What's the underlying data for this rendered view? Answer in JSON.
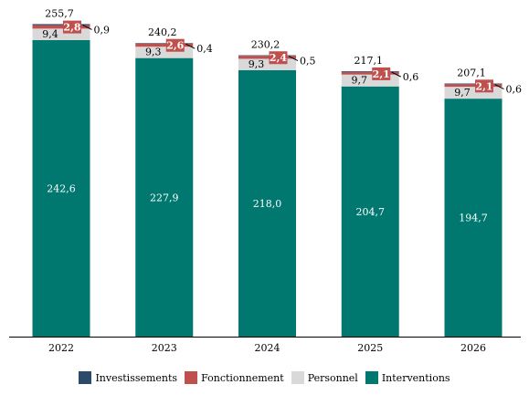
{
  "chart_data": {
    "type": "bar",
    "stacked": true,
    "categories": [
      "2022",
      "2023",
      "2024",
      "2025",
      "2026"
    ],
    "totals": [
      "255,7",
      "240,2",
      "230,2",
      "217,1",
      "207,1"
    ],
    "series": [
      {
        "name": "Interventions",
        "color": "#00786f",
        "values": [
          242.6,
          227.9,
          218.0,
          204.7,
          194.7
        ],
        "labels": [
          "242,6",
          "227,9",
          "218,0",
          "204,7",
          "194,7"
        ]
      },
      {
        "name": "Personnel",
        "color": "#d9d9d9",
        "values": [
          9.4,
          9.3,
          9.3,
          9.7,
          9.7
        ],
        "labels": [
          "9,4",
          "9,3",
          "9,3",
          "9,7",
          "9,7"
        ]
      },
      {
        "name": "Fonctionnement",
        "color": "#c0504d",
        "values": [
          2.8,
          2.6,
          2.4,
          2.1,
          2.1
        ],
        "labels": [
          "2,8",
          "2,6",
          "2,4",
          "2,1",
          "2,1"
        ]
      },
      {
        "name": "Investissements",
        "color": "#2e4a6b",
        "values": [
          0.9,
          0.4,
          0.5,
          0.6,
          0.6
        ],
        "labels": [
          "0,9",
          "0,4",
          "0,5",
          "0,6",
          "0,6"
        ]
      }
    ],
    "ylim": [
      0,
      256
    ],
    "grid": false,
    "legend": {
      "position": "bottom",
      "order": [
        "Investissements",
        "Fonctionnement",
        "Personnel",
        "Interventions"
      ]
    }
  }
}
